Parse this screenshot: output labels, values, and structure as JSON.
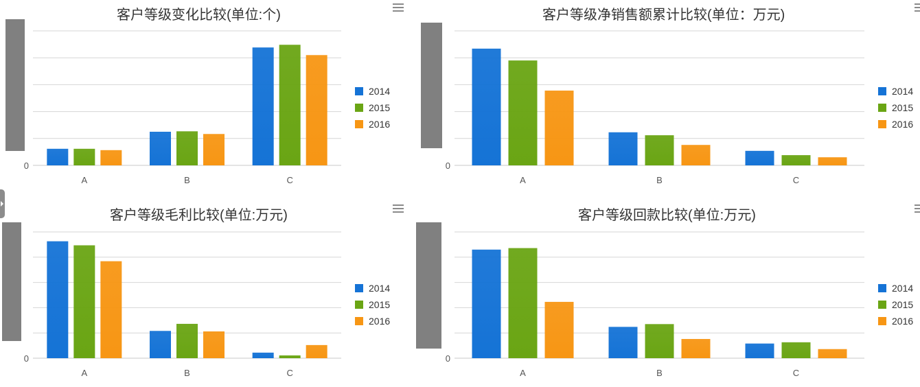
{
  "colors": {
    "2014": "#1573d6",
    "2015": "#6aa514",
    "2016": "#f79614"
  },
  "charts": [
    {
      "title": "客户等级变化比较(单位:个)",
      "legend": [
        "2014",
        "2015",
        "2016"
      ],
      "chart_data": {
        "type": "bar",
        "categories": [
          "A",
          "B",
          "C"
        ],
        "series": [
          {
            "name": "2014",
            "values": [
              37,
              75,
              263
            ]
          },
          {
            "name": "2015",
            "values": [
              37,
              76,
              269
            ]
          },
          {
            "name": "2016",
            "values": [
              34,
              70,
              246
            ]
          }
        ],
        "ylim": [
          0,
          300
        ],
        "yticks": [
          "0"
        ]
      }
    },
    {
      "title": "客户等级净销售额累计比较(单位：万元)",
      "legend": [
        "2014",
        "2015",
        "2016"
      ],
      "chart_data": {
        "type": "bar",
        "categories": [
          "A",
          "B",
          "C"
        ],
        "series": [
          {
            "name": "2014",
            "values": [
              4340,
              1230,
              540
            ]
          },
          {
            "name": "2015",
            "values": [
              3900,
              1120,
              380
            ]
          },
          {
            "name": "2016",
            "values": [
              2780,
              760,
              301
            ]
          }
        ],
        "ylim": [
          0,
          5000
        ],
        "yticks": [
          "0"
        ]
      }
    },
    {
      "title": "客户等级毛利比较(单位:万元)",
      "legend": [
        "2014",
        "2015",
        "2016"
      ],
      "chart_data": {
        "type": "bar",
        "categories": [
          "A",
          "B",
          "C"
        ],
        "series": [
          {
            "name": "2014",
            "values": [
              463,
              108,
              22
            ]
          },
          {
            "name": "2015",
            "values": [
              447,
              136,
              11
            ]
          },
          {
            "name": "2016",
            "values": [
              384,
              106,
              52
            ]
          }
        ],
        "ylim": [
          0,
          500
        ],
        "yticks": [
          "0"
        ]
      }
    },
    {
      "title": "客户等级回款比较(单位:万元)",
      "legend": [
        "2014",
        "2015",
        "2016"
      ],
      "chart_data": {
        "type": "bar",
        "categories": [
          "A",
          "B",
          "C"
        ],
        "series": [
          {
            "name": "2014",
            "values": [
              4300,
              1240,
              580
            ]
          },
          {
            "name": "2015",
            "values": [
              4360,
              1350,
              630
            ]
          },
          {
            "name": "2016",
            "values": [
              2230,
              760,
              360
            ]
          }
        ],
        "ylim": [
          0,
          5000
        ],
        "yticks": [
          "0"
        ]
      }
    }
  ]
}
